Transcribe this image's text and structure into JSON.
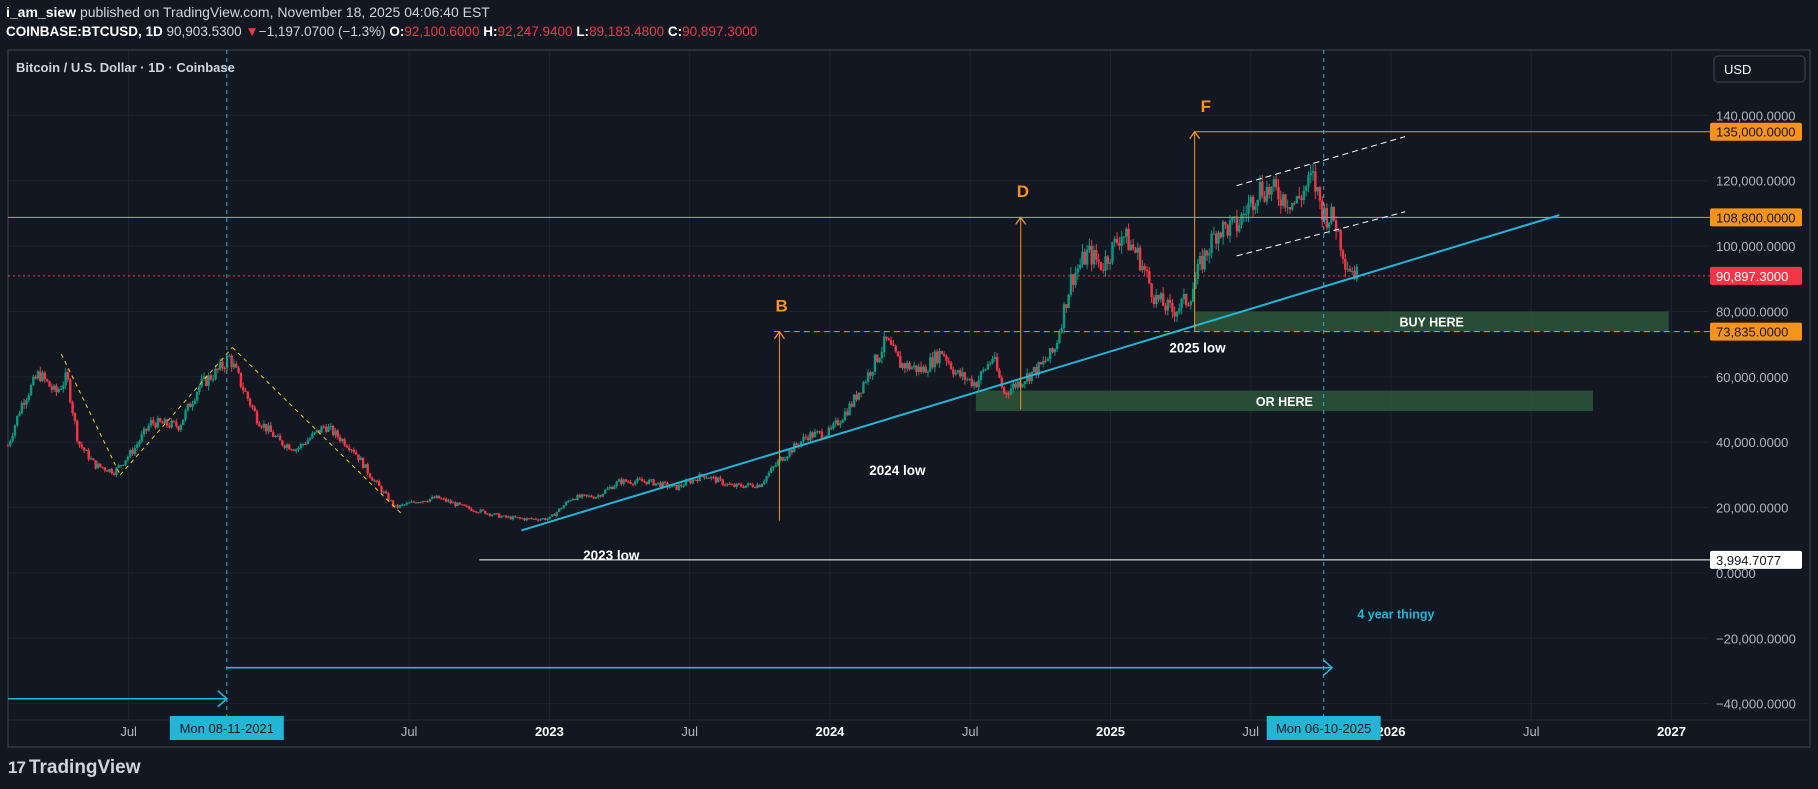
{
  "header": {
    "author": "i_am_siew",
    "published": "published on TradingView.com, November 18, 2025 04:06:40 EST",
    "symbol": "COINBASE:BTCUSD, 1D",
    "last": "90,903.5300",
    "change_arrow": "▼",
    "change": "−1,197.0700 (−1.3%)",
    "o_label": "O:",
    "o": "92,100.6000",
    "h_label": "H:",
    "h": "92,247.9400",
    "l_label": "L:",
    "l": "89,183.4800",
    "c_label": "C:",
    "c": "90,897.3000"
  },
  "pane": {
    "title": "Bitcoin / U.S. Dollar · 1D · Coinbase",
    "currency_button": "USD"
  },
  "brand": {
    "logo_text": "17",
    "name": "TradingView"
  },
  "colors": {
    "background": "#131722",
    "up": "#089981",
    "down": "#f23645",
    "trend": "#22b5d4",
    "orange": "#f7931a",
    "zone": "#2e5a3c"
  },
  "chart_data": {
    "type": "candlestick",
    "title": "Bitcoin / U.S. Dollar · 1D · Coinbase",
    "xlabel": "",
    "ylabel": "",
    "ylim": [
      -45000,
      160000
    ],
    "xlim": [
      2021.07,
      2027.13
    ],
    "y_ticks": [
      {
        "value": 140000,
        "label": "140,000.0000"
      },
      {
        "value": 120000,
        "label": "120,000.0000"
      },
      {
        "value": 100000,
        "label": "100,000.0000"
      },
      {
        "value": 80000,
        "label": "80,000.0000"
      },
      {
        "value": 60000,
        "label": "60,000.0000"
      },
      {
        "value": 40000,
        "label": "40,000.0000"
      },
      {
        "value": 20000,
        "label": "20,000.0000"
      },
      {
        "value": 0,
        "label": "0.0000"
      },
      {
        "value": -20000,
        "label": "−20,000.0000"
      },
      {
        "value": -40000,
        "label": "−40,000.0000"
      }
    ],
    "x_ticks": [
      {
        "value": 2021.5,
        "label": "Jul",
        "bold": false
      },
      {
        "value": 2022.5,
        "label": "Jul",
        "bold": false
      },
      {
        "value": 2023.0,
        "label": "2023",
        "bold": true
      },
      {
        "value": 2023.5,
        "label": "Jul",
        "bold": false
      },
      {
        "value": 2024.0,
        "label": "2024",
        "bold": true
      },
      {
        "value": 2024.5,
        "label": "Jul",
        "bold": false
      },
      {
        "value": 2025.0,
        "label": "2025",
        "bold": true
      },
      {
        "value": 2025.5,
        "label": "Jul",
        "bold": false
      },
      {
        "value": 2026.0,
        "label": "2026",
        "bold": true
      },
      {
        "value": 2026.5,
        "label": "Jul",
        "bold": false
      },
      {
        "value": 2027.0,
        "label": "2027",
        "bold": true
      }
    ],
    "price_path": [
      [
        2021.07,
        39000
      ],
      [
        2021.12,
        52000
      ],
      [
        2021.18,
        61000
      ],
      [
        2021.24,
        55000
      ],
      [
        2021.28,
        60000
      ],
      [
        2021.32,
        40000
      ],
      [
        2021.38,
        33000
      ],
      [
        2021.45,
        31000
      ],
      [
        2021.52,
        38000
      ],
      [
        2021.58,
        46000
      ],
      [
        2021.68,
        45000
      ],
      [
        2021.75,
        57000
      ],
      [
        2021.82,
        62000
      ],
      [
        2021.86,
        66000
      ],
      [
        2021.9,
        58000
      ],
      [
        2021.96,
        47000
      ],
      [
        2022.04,
        40000
      ],
      [
        2022.1,
        38000
      ],
      [
        2022.2,
        45000
      ],
      [
        2022.3,
        38000
      ],
      [
        2022.36,
        30000
      ],
      [
        2022.45,
        20000
      ],
      [
        2022.53,
        22000
      ],
      [
        2022.6,
        23000
      ],
      [
        2022.7,
        20000
      ],
      [
        2022.84,
        17000
      ],
      [
        2022.92,
        16500
      ],
      [
        2023.0,
        16600
      ],
      [
        2023.08,
        23000
      ],
      [
        2023.17,
        23500
      ],
      [
        2023.25,
        28000
      ],
      [
        2023.35,
        28000
      ],
      [
        2023.45,
        26000
      ],
      [
        2023.55,
        30000
      ],
      [
        2023.65,
        26500
      ],
      [
        2023.75,
        27000
      ],
      [
        2023.82,
        34500
      ],
      [
        2023.92,
        42000
      ],
      [
        2024.0,
        43000
      ],
      [
        2024.08,
        52000
      ],
      [
        2024.15,
        63000
      ],
      [
        2024.2,
        71000
      ],
      [
        2024.25,
        64000
      ],
      [
        2024.33,
        62000
      ],
      [
        2024.4,
        68000
      ],
      [
        2024.45,
        61000
      ],
      [
        2024.52,
        58000
      ],
      [
        2024.58,
        66000
      ],
      [
        2024.62,
        55000
      ],
      [
        2024.7,
        60000
      ],
      [
        2024.75,
        63000
      ],
      [
        2024.8,
        68000
      ],
      [
        2024.86,
        90000
      ],
      [
        2024.92,
        98000
      ],
      [
        2024.97,
        94000
      ],
      [
        2025.04,
        104000
      ],
      [
        2025.1,
        97000
      ],
      [
        2025.16,
        84000
      ],
      [
        2025.22,
        80000
      ],
      [
        2025.28,
        84000
      ],
      [
        2025.32,
        94000
      ],
      [
        2025.38,
        105000
      ],
      [
        2025.45,
        106000
      ],
      [
        2025.53,
        118000
      ],
      [
        2025.6,
        116000
      ],
      [
        2025.66,
        113000
      ],
      [
        2025.72,
        121000
      ],
      [
        2025.76,
        110000
      ],
      [
        2025.8,
        108000
      ],
      [
        2025.84,
        95000
      ],
      [
        2025.88,
        90900
      ]
    ],
    "price_lines": [
      {
        "price": 135000,
        "label": "135,000.0000",
        "style": "solid",
        "color": "#f7931a",
        "from": 2025.3,
        "label_bg": "#f7931a",
        "label_fg": "#131722"
      },
      {
        "price": 108800,
        "label": "108,800.0000",
        "style": "solid",
        "color": "#f7931a",
        "from": 2021.07,
        "label_bg": "#f7931a",
        "label_fg": "#131722"
      },
      {
        "price": 90897.3,
        "label": "90,897.3000",
        "style": "dotted",
        "color": "#f23645",
        "from": 2021.07,
        "label_bg": "#f23645",
        "label_fg": "#ffffff"
      },
      {
        "price": 73835,
        "label": "73,835.0000",
        "style": "dashed",
        "color": "#f7931a",
        "from": 2023.8,
        "label_bg": "#f7931a",
        "label_fg": "#131722"
      },
      {
        "price": 3994.7077,
        "label": "3,994.7077",
        "style": "solid",
        "color": "#ffffff",
        "from": 2022.75,
        "label_bg": "#ffffff",
        "label_fg": "#131722"
      }
    ],
    "trend_line": {
      "from": [
        2022.9,
        13000
      ],
      "to": [
        2026.6,
        109500
      ]
    },
    "channel": [
      {
        "from": [
          2025.45,
          118500
        ],
        "to": [
          2026.05,
          133500
        ]
      },
      {
        "from": [
          2025.45,
          97000
        ],
        "to": [
          2026.05,
          110500
        ]
      }
    ],
    "wave_lines": [
      {
        "from": [
          2021.26,
          67000
        ],
        "to": [
          2021.47,
          30000
        ]
      },
      {
        "from": [
          2021.47,
          30000
        ],
        "to": [
          2021.87,
          69000
        ]
      },
      {
        "from": [
          2021.87,
          69000
        ],
        "to": [
          2022.48,
          17500
        ]
      }
    ],
    "targets": [
      {
        "label": "B",
        "x": 2023.82,
        "from": 16000,
        "to": 73800,
        "label_price": 80000
      },
      {
        "label": "D",
        "x": 2024.68,
        "from": 50000,
        "to": 108800,
        "label_price": 115000
      },
      {
        "label": "F",
        "x": 2025.3,
        "from": 74000,
        "to": 135000,
        "label_price": 141000
      }
    ],
    "zones": [
      {
        "label": "BUY HERE",
        "x0": 2025.3,
        "x1": 2026.99,
        "y0": 73835,
        "y1": 80000
      },
      {
        "label": "OR HERE",
        "x0": 2024.52,
        "x1": 2026.72,
        "y0": 49500,
        "y1": 55800
      }
    ],
    "annotations": [
      {
        "text": "2023 low",
        "x": 2023.12,
        "y": 4000,
        "color": "#ffffff"
      },
      {
        "text": "2024 low",
        "x": 2024.14,
        "y": 30000,
        "color": "#ffffff"
      },
      {
        "text": "2025 low",
        "x": 2025.21,
        "y": 67500,
        "color": "#ffffff"
      },
      {
        "text": "4 year thingy",
        "x": 2025.88,
        "y": -14000,
        "color": "#22b5d4"
      }
    ],
    "verticals": [
      {
        "x": 2021.85,
        "label": "Mon 08-11-2021"
      },
      {
        "x": 2025.76,
        "label": "Mon 06-10-2025"
      }
    ],
    "arrows": [
      {
        "from": [
          2021.07,
          -38500
        ],
        "to": [
          2021.85,
          -38500
        ]
      },
      {
        "from": [
          2021.85,
          -29000
        ],
        "to": [
          2025.79,
          -29000
        ]
      }
    ]
  }
}
